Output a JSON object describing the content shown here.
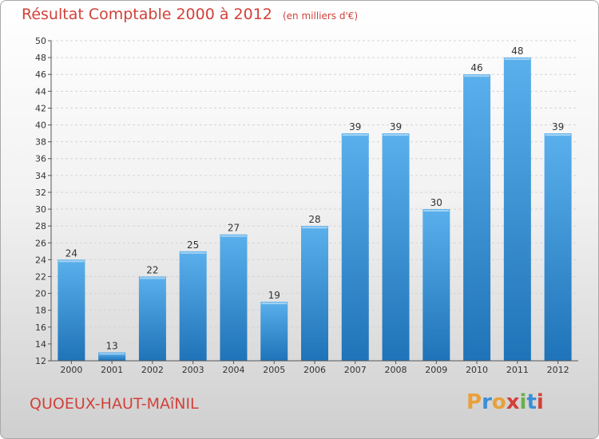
{
  "title": "Résultat Comptable 2000 à 2012",
  "subtitle": "(en milliers d'€)",
  "commune": "QUOEUX-HAUT-MAîNIL",
  "logo": {
    "letters": [
      "P",
      "r",
      "o",
      "x",
      "i",
      "t",
      "i"
    ],
    "colors": [
      "#e8a13a",
      "#3c8fd6",
      "#e8a13a",
      "#d2413a",
      "#6ab04c",
      "#3c8fd6",
      "#d2413a"
    ]
  },
  "colors": {
    "bar_light": "#5ab0ec",
    "bar_dark": "#1f73b8",
    "accent": "#d2413a"
  },
  "chart_data": {
    "type": "bar",
    "categories": [
      "2000",
      "2001",
      "2002",
      "2003",
      "2004",
      "2005",
      "2006",
      "2007",
      "2008",
      "2009",
      "2010",
      "2011",
      "2012"
    ],
    "values": [
      24,
      13,
      22,
      25,
      27,
      19,
      28,
      39,
      39,
      30,
      46,
      48,
      39
    ],
    "ylim": [
      12,
      50
    ],
    "yticks": [
      12,
      14,
      16,
      18,
      20,
      22,
      24,
      26,
      28,
      30,
      32,
      34,
      36,
      38,
      40,
      42,
      44,
      46,
      48,
      50
    ],
    "grid": true,
    "legend": "none"
  }
}
